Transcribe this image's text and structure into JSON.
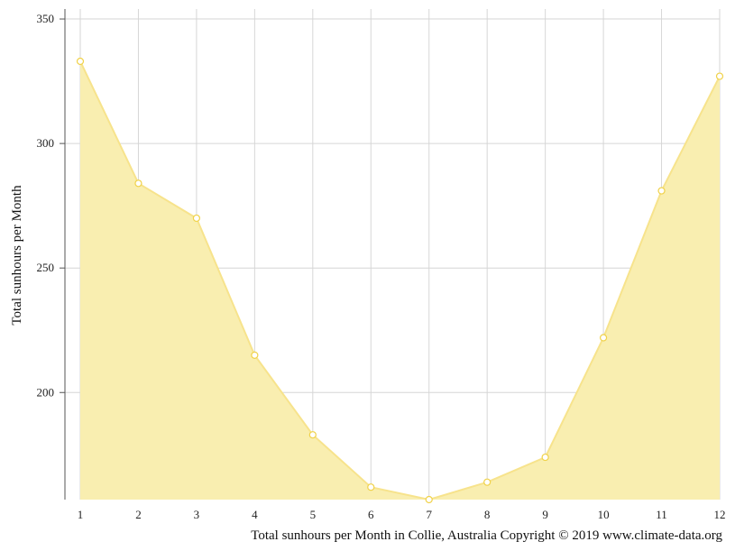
{
  "chart_data": {
    "type": "area",
    "ylabel": "Total sunhours per Month",
    "caption": "Total sunhours per Month in Collie, Australia Copyright © 2019 www.climate-data.org",
    "x": [
      1,
      2,
      3,
      4,
      5,
      6,
      7,
      8,
      9,
      10,
      11,
      12
    ],
    "x_tick_labels": [
      "1",
      "2",
      "3",
      "4",
      "5",
      "6",
      "7",
      "8",
      "9",
      "10",
      "11",
      "12"
    ],
    "y_ticks": [
      200,
      250,
      300,
      350
    ],
    "y_tick_labels": [
      "200",
      "250",
      "300",
      "350"
    ],
    "ylim": [
      157,
      354
    ],
    "series": [
      {
        "values": [
          333,
          284,
          270,
          215,
          183,
          162,
          157,
          164,
          174,
          222,
          281,
          327
        ],
        "color": "#f5dc5a"
      }
    ],
    "fill_color": "#f9eeb0",
    "line_color": "#f7e38c",
    "point_fill": "#ffffff",
    "point_stroke": "#f0d24a",
    "grid": true,
    "grid_color": "#d6d6d6",
    "axis_color": "#555555"
  }
}
